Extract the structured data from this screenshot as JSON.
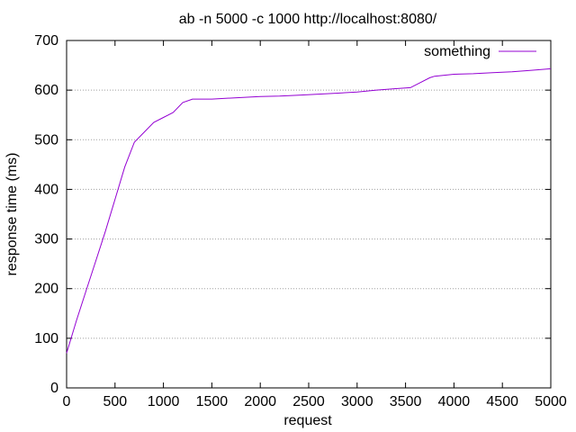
{
  "chart_data": {
    "type": "line",
    "title": "ab -n 5000 -c 1000 http://localhost:8080/",
    "xlabel": "request",
    "ylabel": "response time (ms)",
    "xlim": [
      0,
      5000
    ],
    "ylim": [
      0,
      700
    ],
    "xticks": [
      0,
      500,
      1000,
      1500,
      2000,
      2500,
      3000,
      3500,
      4000,
      4500,
      5000
    ],
    "yticks": [
      0,
      100,
      200,
      300,
      400,
      500,
      600,
      700
    ],
    "grid": "horizontal dotted",
    "legend_position": "top-right",
    "series": [
      {
        "name": "something",
        "color": "#9400d3",
        "x": [
          0,
          100,
          200,
          300,
          400,
          500,
          600,
          700,
          800,
          900,
          1000,
          1100,
          1200,
          1300,
          1400,
          1500,
          1600,
          1800,
          2000,
          2200,
          2400,
          2600,
          2800,
          3000,
          3200,
          3400,
          3550,
          3650,
          3750,
          3800,
          3900,
          4000,
          4200,
          4400,
          4600,
          4800,
          5000
        ],
        "y": [
          70,
          135,
          195,
          255,
          315,
          380,
          445,
          495,
          515,
          535,
          545,
          555,
          575,
          582,
          582,
          582,
          583,
          585,
          587,
          588,
          590,
          592,
          594,
          596,
          600,
          603,
          605,
          615,
          625,
          628,
          630,
          632,
          633,
          635,
          637,
          640,
          643
        ]
      }
    ]
  }
}
